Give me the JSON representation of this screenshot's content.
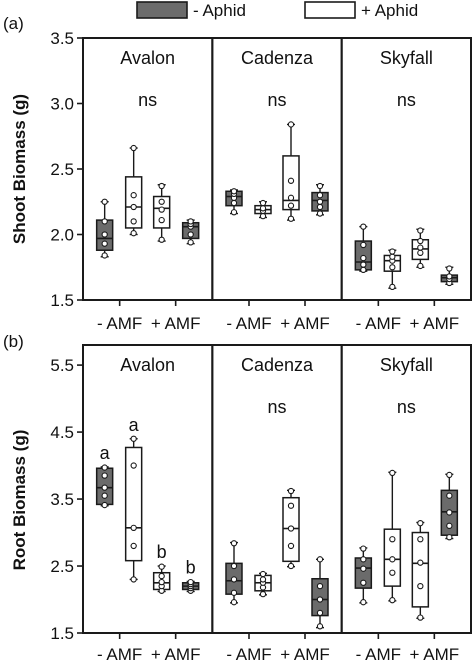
{
  "colors": {
    "minus_aphid": "#6b6b6b",
    "plus_aphid": "#ffffff",
    "stroke": "#1a1a1a"
  },
  "legend": [
    {
      "label": "- Aphid",
      "fill": "#6b6b6b"
    },
    {
      "label": "+ Aphid",
      "fill": "#ffffff"
    }
  ],
  "chart_data": [
    {
      "type": "box",
      "panel_label": "(a)",
      "ylabel": "Shoot Biomass (g)",
      "ylim": [
        1.5,
        3.5
      ],
      "yticks": [
        "1.5",
        "2.0",
        "2.5",
        "3.0",
        "3.5"
      ],
      "ytick_values": [
        1.5,
        2.0,
        2.5,
        3.0,
        3.5
      ],
      "x_categories": [
        "- AMF",
        "+ AMF"
      ],
      "groups": [
        {
          "name": "Avalon",
          "annotation": "ns",
          "boxes": [
            {
              "amf": "- AMF",
              "aphid": "- Aphid",
              "min": 1.83,
              "q1": 1.88,
              "median": 1.97,
              "q3": 2.11,
              "max": 2.25,
              "points": [
                1.84,
                1.93,
                2.0,
                2.1,
                2.25
              ]
            },
            {
              "amf": "- AMF",
              "aphid": "+ Aphid",
              "min": 2.0,
              "q1": 2.05,
              "median": 2.21,
              "q3": 2.44,
              "max": 2.66,
              "points": [
                2.01,
                2.1,
                2.21,
                2.3,
                2.66
              ]
            },
            {
              "amf": "+ AMF",
              "aphid": "- Aphid",
              "min": 1.93,
              "q1": 1.97,
              "median": 2.06,
              "q3": 2.09,
              "max": 2.11,
              "points": [
                1.94,
                2.0,
                2.06,
                2.08,
                2.1
              ]
            },
            {
              "amf": "+ AMF",
              "aphid": "+ Aphid",
              "min": 1.95,
              "q1": 2.05,
              "median": 2.2,
              "q3": 2.29,
              "max": 2.38,
              "points": [
                1.96,
                2.11,
                2.19,
                2.25,
                2.37
              ]
            }
          ]
        },
        {
          "name": "Cadenza",
          "annotation": "ns",
          "boxes": [
            {
              "amf": "- AMF",
              "aphid": "- Aphid",
              "min": 2.16,
              "q1": 2.22,
              "median": 2.29,
              "q3": 2.33,
              "max": 2.34,
              "points": [
                2.17,
                2.24,
                2.28,
                2.31,
                2.33
              ]
            },
            {
              "amf": "- AMF",
              "aphid": "+ Aphid",
              "min": 2.13,
              "q1": 2.16,
              "median": 2.19,
              "q3": 2.22,
              "max": 2.25,
              "points": [
                2.14,
                2.18,
                2.2,
                2.24
              ]
            },
            {
              "amf": "+ AMF",
              "aphid": "- Aphid",
              "min": 2.15,
              "q1": 2.18,
              "median": 2.26,
              "q3": 2.32,
              "max": 2.38,
              "points": [
                2.16,
                2.21,
                2.25,
                2.3,
                2.37
              ]
            },
            {
              "amf": "+ AMF",
              "aphid": "+ Aphid",
              "min": 2.11,
              "q1": 2.19,
              "median": 2.26,
              "q3": 2.6,
              "max": 2.84,
              "points": [
                2.12,
                2.22,
                2.28,
                2.41,
                2.84
              ]
            }
          ]
        },
        {
          "name": "Skyfall",
          "annotation": "ns",
          "boxes": [
            {
              "amf": "- AMF",
              "aphid": "- Aphid",
              "min": 1.72,
              "q1": 1.73,
              "median": 1.79,
              "q3": 1.95,
              "max": 2.06,
              "points": [
                1.73,
                1.77,
                1.82,
                1.92,
                2.06
              ]
            },
            {
              "amf": "- AMF",
              "aphid": "+ Aphid",
              "min": 1.59,
              "q1": 1.72,
              "median": 1.8,
              "q3": 1.84,
              "max": 1.88,
              "points": [
                1.6,
                1.75,
                1.8,
                1.83,
                1.87
              ]
            },
            {
              "amf": "+ AMF",
              "aphid": "- Aphid",
              "min": 1.62,
              "q1": 1.64,
              "median": 1.67,
              "q3": 1.69,
              "max": 1.75,
              "points": [
                1.63,
                1.66,
                1.68,
                1.74
              ]
            },
            {
              "amf": "+ AMF",
              "aphid": "+ Aphid",
              "min": 1.75,
              "q1": 1.81,
              "median": 1.89,
              "q3": 1.96,
              "max": 2.04,
              "points": [
                1.76,
                1.86,
                1.9,
                1.95,
                2.03
              ]
            }
          ]
        }
      ]
    },
    {
      "type": "box",
      "panel_label": "(b)",
      "ylabel": "Root Biomass (g)",
      "ylim": [
        1.5,
        5.8
      ],
      "yticks": [
        "1.5",
        "2.5",
        "3.5",
        "4.5",
        "5.5"
      ],
      "ytick_values": [
        1.5,
        2.5,
        3.5,
        4.5,
        5.5
      ],
      "x_categories": [
        "- AMF",
        "+ AMF"
      ],
      "groups": [
        {
          "name": "Avalon",
          "annotation": "",
          "boxes": [
            {
              "amf": "- AMF",
              "aphid": "- Aphid",
              "letter": "a",
              "min": 3.4,
              "q1": 3.42,
              "median": 3.67,
              "q3": 3.96,
              "max": 3.98,
              "points": [
                3.41,
                3.55,
                3.67,
                3.85,
                3.97
              ]
            },
            {
              "amf": "- AMF",
              "aphid": "+ Aphid",
              "letter": "a",
              "min": 2.3,
              "q1": 2.58,
              "median": 3.07,
              "q3": 4.27,
              "max": 4.4,
              "points": [
                2.3,
                2.8,
                3.07,
                4.0,
                4.4
              ]
            },
            {
              "amf": "+ AMF",
              "aphid": "- Aphid",
              "letter": "b",
              "min": 2.12,
              "q1": 2.15,
              "median": 2.2,
              "q3": 2.25,
              "max": 2.27,
              "points": [
                2.13,
                2.17,
                2.2,
                2.23,
                2.26
              ]
            },
            {
              "amf": "+ AMF",
              "aphid": "+ Aphid",
              "letter": "b",
              "min": 2.12,
              "q1": 2.15,
              "median": 2.25,
              "q3": 2.4,
              "max": 2.5,
              "points": [
                2.13,
                2.2,
                2.26,
                2.35,
                2.49
              ]
            }
          ]
        },
        {
          "name": "Cadenza",
          "annotation": "ns",
          "boxes": [
            {
              "amf": "- AMF",
              "aphid": "- Aphid",
              "min": 1.95,
              "q1": 2.08,
              "median": 2.28,
              "q3": 2.54,
              "max": 2.85,
              "points": [
                1.96,
                2.1,
                2.3,
                2.5,
                2.84
              ]
            },
            {
              "amf": "- AMF",
              "aphid": "+ Aphid",
              "min": 2.07,
              "q1": 2.13,
              "median": 2.25,
              "q3": 2.36,
              "max": 2.39,
              "points": [
                2.08,
                2.18,
                2.25,
                2.3,
                2.38
              ]
            },
            {
              "amf": "+ AMF",
              "aphid": "- Aphid",
              "min": 1.58,
              "q1": 1.76,
              "median": 2.0,
              "q3": 2.31,
              "max": 2.6,
              "points": [
                1.6,
                1.8,
                2.0,
                2.2,
                2.6
              ]
            },
            {
              "amf": "+ AMF",
              "aphid": "+ Aphid",
              "min": 2.49,
              "q1": 2.57,
              "median": 3.06,
              "q3": 3.52,
              "max": 3.63,
              "points": [
                2.5,
                2.8,
                3.06,
                3.4,
                3.62
              ]
            }
          ]
        },
        {
          "name": "Skyfall",
          "annotation": "ns",
          "boxes": [
            {
              "amf": "- AMF",
              "aphid": "- Aphid",
              "min": 1.95,
              "q1": 2.17,
              "median": 2.47,
              "q3": 2.62,
              "max": 2.77,
              "points": [
                1.96,
                2.25,
                2.46,
                2.6,
                2.76
              ]
            },
            {
              "amf": "- AMF",
              "aphid": "+ Aphid",
              "min": 1.98,
              "q1": 2.2,
              "median": 2.6,
              "q3": 3.05,
              "max": 3.9,
              "points": [
                1.99,
                2.4,
                2.6,
                2.9,
                3.89
              ]
            },
            {
              "amf": "+ AMF",
              "aphid": "- Aphid",
              "min": 2.91,
              "q1": 2.96,
              "median": 3.31,
              "q3": 3.63,
              "max": 3.87,
              "points": [
                2.93,
                3.1,
                3.3,
                3.55,
                3.86
              ]
            },
            {
              "amf": "+ AMF",
              "aphid": "+ Aphid",
              "min": 1.72,
              "q1": 1.89,
              "median": 2.54,
              "q3": 3.0,
              "max": 3.15,
              "points": [
                1.73,
                2.2,
                2.55,
                2.9,
                3.14
              ]
            }
          ]
        }
      ]
    }
  ]
}
